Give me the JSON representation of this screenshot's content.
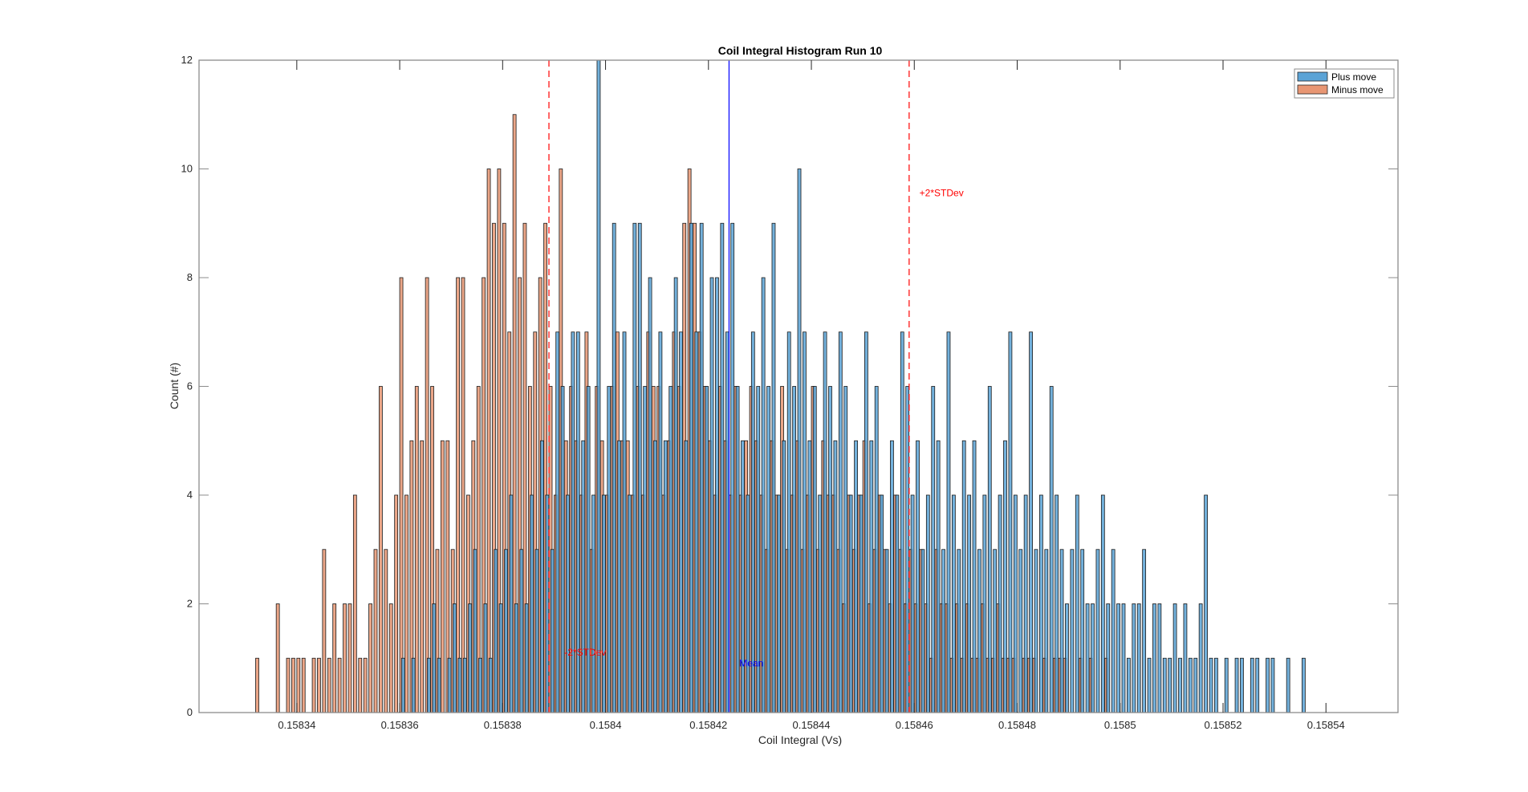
{
  "chart_data": {
    "type": "bar",
    "subtype": "overlapping-histogram",
    "title": "Coil Integral Histogram Run 10",
    "xlabel": "Coil Integral (Vs)",
    "ylabel": "Count (#)",
    "xlim": [
      0.158321,
      0.158554
    ],
    "ylim": [
      0,
      12
    ],
    "xticks": [
      0.15834,
      0.15836,
      0.15838,
      0.1584,
      0.15842,
      0.15844,
      0.15846,
      0.15848,
      0.1585,
      0.15852,
      0.15854
    ],
    "xtick_labels": [
      "0.15834",
      "0.15836",
      "0.15838",
      "0.1584",
      "0.15842",
      "0.15844",
      "0.15846",
      "0.15848",
      "0.1585",
      "0.15852",
      "0.15854"
    ],
    "yticks": [
      0,
      2,
      4,
      6,
      8,
      10,
      12
    ],
    "ytick_labels": [
      "0",
      "2",
      "4",
      "6",
      "8",
      "10",
      "12"
    ],
    "grid": false,
    "legend": {
      "placement": "top-right",
      "entries": [
        "Plus move",
        "Minus move"
      ]
    },
    "bin_start": 0.158332,
    "bin_width": 1e-06,
    "series": [
      {
        "name": "Plus move",
        "color": "#5ba3d6",
        "edge": "#1a1a1a",
        "values": [
          0,
          0,
          0,
          0,
          0,
          0,
          0,
          0,
          0,
          0,
          0,
          0,
          0,
          0,
          0,
          0,
          0,
          0,
          0,
          0,
          0,
          0,
          0,
          0,
          0,
          0,
          0,
          0,
          1,
          0,
          1,
          0,
          0,
          1,
          2,
          1,
          0,
          1,
          2,
          1,
          1,
          2,
          3,
          1,
          2,
          1,
          3,
          2,
          3,
          4,
          2,
          3,
          2,
          4,
          3,
          5,
          4,
          3,
          7,
          6,
          4,
          7,
          7,
          5,
          6,
          4,
          12,
          4,
          6,
          9,
          5,
          7,
          4,
          9,
          9,
          6,
          8,
          5,
          7,
          5,
          6,
          8,
          7,
          5,
          9,
          7,
          9,
          6,
          8,
          8,
          9,
          7,
          9,
          6,
          5,
          4,
          7,
          6,
          8,
          6,
          9,
          4,
          5,
          7,
          6,
          10,
          7,
          5,
          6,
          4,
          7,
          6,
          5,
          7,
          6,
          4,
          5,
          4,
          7,
          5,
          6,
          4,
          3,
          5,
          4,
          7,
          6,
          4,
          5,
          3,
          4,
          6,
          5,
          3,
          7,
          4,
          3,
          5,
          4,
          5,
          3,
          4,
          6,
          3,
          4,
          5,
          7,
          4,
          3,
          4,
          7,
          3,
          4,
          3,
          6,
          4,
          3,
          2,
          3,
          4,
          3,
          2,
          2,
          3,
          4,
          2,
          3,
          2,
          2,
          1,
          2,
          2,
          3,
          1,
          2,
          2,
          1,
          1,
          2,
          1,
          2,
          1,
          1,
          2,
          4,
          1,
          1,
          0,
          1,
          0,
          1,
          1,
          0,
          1,
          1,
          0,
          1,
          1,
          0,
          0,
          1,
          0,
          0,
          1
        ]
      },
      {
        "name": "Minus move",
        "color": "#e89673",
        "edge": "#1a1a1a",
        "values": [
          1,
          0,
          0,
          0,
          2,
          0,
          1,
          1,
          1,
          1,
          0,
          1,
          1,
          3,
          1,
          2,
          1,
          2,
          2,
          4,
          1,
          1,
          2,
          3,
          6,
          3,
          2,
          4,
          8,
          4,
          5,
          6,
          5,
          8,
          6,
          3,
          5,
          5,
          3,
          8,
          8,
          4,
          5,
          6,
          8,
          10,
          9,
          10,
          9,
          7,
          11,
          8,
          9,
          6,
          7,
          8,
          9,
          6,
          4,
          10,
          5,
          6,
          5,
          4,
          7,
          3,
          6,
          5,
          4,
          6,
          7,
          5,
          5,
          4,
          6,
          4,
          7,
          6,
          6,
          4,
          5,
          7,
          6,
          9,
          10,
          9,
          7,
          6,
          5,
          4,
          6,
          5,
          4,
          6,
          4,
          5,
          6,
          5,
          4,
          3,
          5,
          4,
          6,
          3,
          4,
          5,
          3,
          4,
          6,
          3,
          5,
          4,
          4,
          3,
          2,
          4,
          3,
          4,
          5,
          2,
          3,
          4,
          3,
          2,
          4,
          3,
          2,
          3,
          2,
          3,
          2,
          1,
          3,
          2,
          2,
          1,
          2,
          1,
          2,
          1,
          1,
          2,
          1,
          1,
          2,
          1,
          1,
          1,
          0,
          1,
          1,
          1,
          0,
          1,
          0,
          1,
          1,
          1,
          0,
          0,
          1,
          0,
          1,
          0,
          0,
          1,
          0,
          0,
          0,
          0,
          0,
          0,
          0,
          0,
          0,
          0,
          0,
          0,
          0,
          0,
          0,
          0,
          0,
          0,
          0,
          0,
          0,
          0,
          0,
          0,
          0,
          0,
          0,
          0,
          0,
          0,
          0,
          0,
          0,
          0,
          0,
          0,
          0,
          0,
          0,
          0,
          0,
          0,
          0,
          0,
          0,
          0,
          0,
          0,
          0
        ]
      }
    ],
    "reference_lines": [
      {
        "name": "-2*STDev",
        "x": 0.158389,
        "color": "#ff0000",
        "style": "dashed",
        "label": "-2*STDev"
      },
      {
        "name": "Mean",
        "x": 0.158424,
        "color": "#0000ff",
        "style": "solid",
        "label": "Mean"
      },
      {
        "name": "+2*STDev",
        "x": 0.158459,
        "color": "#ff0000",
        "style": "dashed",
        "label": "+2*STDev"
      }
    ],
    "annotations": [
      {
        "text": "-2*STDev",
        "x": 0.158392,
        "y": 1.05,
        "color": "#ff0000"
      },
      {
        "text": "Mean",
        "x": 0.158426,
        "y": 0.85,
        "color": "#0000ff"
      },
      {
        "text": "+2*STDev",
        "x": 0.158461,
        "y": 9.5,
        "color": "#ff0000"
      }
    ]
  }
}
